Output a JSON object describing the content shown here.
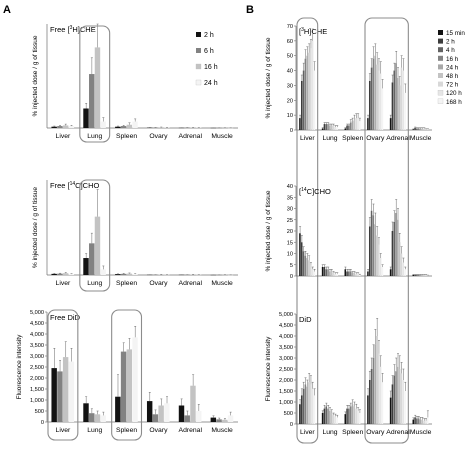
{
  "colors": {
    "series_grays": [
      "#121212",
      "#3c3c3c",
      "#626262",
      "#828282",
      "#a8a8a8",
      "#c3c3c3",
      "#d8d8d8",
      "#e6e6e6",
      "#f4f4f4"
    ],
    "highlight_box": "#8c8c8c",
    "axis": "#707070"
  },
  "panels": [
    {
      "letter": "A",
      "letter_pos": [
        3,
        13
      ]
    },
    {
      "letter": "B",
      "letter_pos": [
        246,
        13
      ]
    }
  ],
  "chart_data": [
    {
      "id": "A1",
      "type": "bar",
      "title": "Free [3H]CHE",
      "title_parts": [
        "Free [",
        "3",
        "H]CHE"
      ],
      "ylabel": "% injected dose / g of tissue",
      "categories": [
        "Liver",
        "Lung",
        "Spleen",
        "Ovary",
        "Adrenal",
        "Muscle"
      ],
      "ylim": [
        0,
        160
      ],
      "yticks": [],
      "show_xlabels": true,
      "series": [
        {
          "name": "2 h",
          "values": [
            2,
            30,
            2,
            0.5,
            0.3,
            0.2
          ],
          "errors": [
            1,
            8,
            1,
            0.3,
            0.2,
            0.1
          ]
        },
        {
          "name": "6 h",
          "values": [
            3,
            83,
            3,
            0.5,
            0.5,
            0.2
          ],
          "errors": [
            1,
            25,
            1,
            0.3,
            0.2,
            0.1
          ]
        },
        {
          "name": "16 h",
          "values": [
            4,
            124,
            5,
            1,
            0.6,
            0.3
          ],
          "errors": [
            2,
            55,
            3,
            0.5,
            0.3,
            0.1
          ]
        },
        {
          "name": "24 h",
          "values": [
            3,
            10,
            10,
            0.5,
            0.5,
            0.2
          ],
          "errors": [
            1,
            6,
            4,
            0.3,
            0.2,
            0.1
          ]
        }
      ],
      "highlight": [
        1
      ],
      "legend": {
        "entries": [
          "2 h",
          "6 h",
          "16 h",
          "24 h"
        ]
      }
    },
    {
      "id": "A2",
      "type": "bar",
      "title": "Free [14C]CHO",
      "title_parts": [
        "Free [",
        "14",
        "C]CHO"
      ],
      "ylabel": "% injected dose / g of tissue",
      "categories": [
        "Liver",
        "Lung",
        "Spleen",
        "Ovary",
        "Adrenal",
        "Muscle"
      ],
      "ylim": [
        0,
        420
      ],
      "yticks": [],
      "show_xlabels": true,
      "series": [
        {
          "name": "2 h",
          "values": [
            5,
            75,
            4,
            1,
            1,
            0.5
          ],
          "errors": [
            2,
            20,
            1,
            0.5,
            0.5,
            0.2
          ]
        },
        {
          "name": "6 h",
          "values": [
            6,
            140,
            5,
            1,
            1,
            0.5
          ],
          "errors": [
            2,
            45,
            2,
            0.5,
            0.5,
            0.2
          ]
        },
        {
          "name": "16 h",
          "values": [
            8,
            258,
            6,
            2,
            2,
            1
          ],
          "errors": [
            3,
            120,
            3,
            1,
            1,
            0.5
          ]
        },
        {
          "name": "24 h",
          "values": [
            4,
            25,
            4,
            1,
            1,
            0.5
          ],
          "errors": [
            2,
            15,
            2,
            0.5,
            0.5,
            0.2
          ]
        }
      ],
      "highlight": [
        1
      ]
    },
    {
      "id": "A3",
      "type": "bar",
      "title": "Free DiD",
      "title_parts": [
        "Free DiD",
        "",
        ""
      ],
      "ylabel": "Fluorescence intensity",
      "categories": [
        "Liver",
        "Lung",
        "Spleen",
        "Ovary",
        "Adrenal",
        "Muscle"
      ],
      "ylim": [
        0,
        5000
      ],
      "yticks": [
        "0",
        "500",
        "1,000",
        "1,500",
        "2,000",
        "2,500",
        "3,000",
        "3,500",
        "4,000",
        "4,500",
        "5,000"
      ],
      "show_xlabels": true,
      "series": [
        {
          "name": "2 h",
          "values": [
            2450,
            850,
            1150,
            950,
            750,
            200
          ],
          "errors": [
            900,
            300,
            1000,
            400,
            300,
            80
          ]
        },
        {
          "name": "6 h",
          "values": [
            2300,
            400,
            3200,
            350,
            300,
            120
          ],
          "errors": [
            500,
            200,
            400,
            200,
            200,
            60
          ]
        },
        {
          "name": "16 h",
          "values": [
            2950,
            350,
            3300,
            750,
            1650,
            100
          ],
          "errors": [
            700,
            150,
            500,
            300,
            500,
            60
          ]
        },
        {
          "name": "24 h",
          "values": [
            2750,
            300,
            3850,
            850,
            500,
            300
          ],
          "errors": [
            600,
            150,
            500,
            300,
            300,
            150
          ]
        }
      ],
      "highlight": [
        0,
        2
      ]
    },
    {
      "id": "B1",
      "type": "bar",
      "title": "[3H]CHE",
      "title_parts": [
        "[",
        "3",
        "H]CHE"
      ],
      "ylabel": "% injected dose / g of tissue",
      "categories": [
        "Liver",
        "Lung",
        "Spleen",
        "Ovary",
        "Adrenal",
        "Muscle"
      ],
      "ylim": [
        0,
        70
      ],
      "yticks": [
        "0",
        "10",
        "20",
        "30",
        "40",
        "50",
        "60",
        "70"
      ],
      "show_xlabels": true,
      "series": [
        {
          "name": "15 min",
          "values": [
            8,
            1,
            1,
            8,
            8,
            0.5
          ],
          "errors": [
            2,
            0.5,
            0.5,
            2,
            2,
            0.2
          ]
        },
        {
          "name": "2 h",
          "values": [
            33,
            4,
            3,
            33,
            32,
            1.5
          ],
          "errors": [
            4,
            1,
            1,
            5,
            5,
            0.5
          ]
        },
        {
          "name": "4 h",
          "values": [
            40,
            4,
            3,
            42,
            40,
            1
          ],
          "errors": [
            5,
            1,
            1,
            6,
            5,
            0.5
          ]
        },
        {
          "name": "16 h",
          "values": [
            48,
            4,
            5,
            48,
            45,
            1
          ],
          "errors": [
            6,
            1,
            2,
            8,
            8,
            0.5
          ]
        },
        {
          "name": "24 h",
          "values": [
            50,
            3,
            6,
            50,
            35,
            1
          ],
          "errors": [
            6,
            1,
            2,
            8,
            7,
            0.5
          ]
        },
        {
          "name": "48 h",
          "values": [
            52,
            3,
            7,
            44,
            30,
            1
          ],
          "errors": [
            6,
            1,
            3,
            8,
            6,
            0.5
          ]
        },
        {
          "name": "72 h",
          "values": [
            55,
            3,
            8,
            40,
            42,
            1
          ],
          "errors": [
            6,
            1,
            3,
            8,
            8,
            0.5
          ]
        },
        {
          "name": "120 h",
          "values": [
            60,
            2,
            8,
            38,
            40,
            0.5
          ],
          "errors": [
            8,
            1,
            3,
            8,
            8,
            0.3
          ]
        },
        {
          "name": "168 h",
          "values": [
            40,
            2,
            6,
            28,
            25,
            0.5
          ],
          "errors": [
            6,
            1,
            2,
            6,
            6,
            0.3
          ]
        }
      ],
      "highlight": [
        0,
        [
          3,
          4
        ]
      ],
      "legend": {
        "entries": [
          "15 min",
          "2 h",
          "4 h",
          "16 h",
          "24 h",
          "48 h",
          "72 h",
          "120 h",
          "168 h"
        ]
      }
    },
    {
      "id": "B2",
      "type": "bar",
      "title": "[14C]CHO",
      "title_parts": [
        "[",
        "14",
        "C]CHO"
      ],
      "ylabel": "% injected dose / g of tissue",
      "categories": [
        "Liver",
        "Lung",
        "Spleen",
        "Ovary",
        "Adrenal",
        "Muscle"
      ],
      "ylim": [
        0,
        40
      ],
      "yticks": [
        "0",
        "5",
        "10",
        "15",
        "20",
        "25",
        "30",
        "35",
        "40"
      ],
      "show_xlabels": false,
      "series": [
        {
          "name": "15 min",
          "values": [
            19,
            4,
            3,
            2,
            3,
            0.5
          ],
          "errors": [
            3,
            1,
            1,
            1,
            1,
            0.2
          ]
        },
        {
          "name": "2 h",
          "values": [
            15,
            4,
            2,
            22,
            20,
            0.5
          ],
          "errors": [
            3,
            1,
            1,
            4,
            4,
            0.2
          ]
        },
        {
          "name": "4 h",
          "values": [
            11,
            3,
            2,
            29,
            24,
            0.5
          ],
          "errors": [
            2,
            1,
            1,
            5,
            5,
            0.2
          ]
        },
        {
          "name": "16 h",
          "values": [
            9,
            3,
            2,
            27,
            28,
            0.5
          ],
          "errors": [
            2,
            1,
            1,
            5,
            6,
            0.2
          ]
        },
        {
          "name": "24 h",
          "values": [
            8,
            2,
            1.5,
            23,
            25,
            0.5
          ],
          "errors": [
            2,
            1,
            0.5,
            5,
            5,
            0.2
          ]
        },
        {
          "name": "48 h",
          "values": [
            7,
            2,
            1.5,
            18,
            15,
            0.5
          ],
          "errors": [
            2,
            1,
            0.5,
            4,
            4,
            0.2
          ]
        },
        {
          "name": "72 h",
          "values": [
            5,
            1.5,
            1,
            14,
            10,
            0.5
          ],
          "errors": [
            1,
            0.5,
            0.5,
            3,
            3,
            0.2
          ]
        },
        {
          "name": "120 h",
          "values": [
            3,
            1,
            1,
            8,
            6,
            0.5
          ],
          "errors": [
            1,
            0.5,
            0.5,
            2,
            2,
            0.2
          ]
        },
        {
          "name": "168 h",
          "values": [
            2,
            1,
            0.5,
            4,
            3,
            0.3
          ],
          "errors": [
            1,
            0.5,
            0.3,
            1,
            1,
            0.1
          ]
        }
      ],
      "highlight": [
        0,
        [
          3,
          4
        ]
      ]
    },
    {
      "id": "B3",
      "type": "bar",
      "title": "DiD",
      "title_parts": [
        "DiD",
        "",
        ""
      ],
      "ylabel": "Fluorescence intensity",
      "categories": [
        "Liver",
        "Lung",
        "Spleen",
        "Ovary",
        "Adrenal",
        "Muscle"
      ],
      "ylim": [
        0,
        5000
      ],
      "yticks": [
        "0",
        "500",
        "1,000",
        "1,500",
        "2,000",
        "2,500",
        "3,000",
        "3,500",
        "4,000",
        "4,500",
        "5,000"
      ],
      "show_xlabels": true,
      "series": [
        {
          "name": "15 min",
          "values": [
            900,
            500,
            450,
            1300,
            1200,
            200
          ],
          "errors": [
            200,
            100,
            100,
            300,
            300,
            80
          ]
        },
        {
          "name": "2 h",
          "values": [
            1300,
            700,
            700,
            2000,
            1800,
            300
          ],
          "errors": [
            300,
            150,
            150,
            400,
            400,
            100
          ]
        },
        {
          "name": "4 h",
          "values": [
            1600,
            800,
            700,
            2500,
            2200,
            250
          ],
          "errors": [
            300,
            150,
            150,
            500,
            500,
            100
          ]
        },
        {
          "name": "16 h",
          "values": [
            1800,
            700,
            800,
            3000,
            2400,
            250
          ],
          "errors": [
            300,
            150,
            150,
            600,
            600,
            100
          ]
        },
        {
          "name": "24 h",
          "values": [
            1700,
            600,
            900,
            3600,
            2600,
            200
          ],
          "errors": [
            300,
            150,
            200,
            700,
            600,
            100
          ]
        },
        {
          "name": "48 h",
          "values": [
            1900,
            500,
            800,
            4000,
            2500,
            200
          ],
          "errors": [
            400,
            150,
            200,
            800,
            600,
            100
          ]
        },
        {
          "name": "72 h",
          "values": [
            1800,
            400,
            700,
            3200,
            2300,
            150
          ],
          "errors": [
            400,
            100,
            200,
            600,
            500,
            100
          ]
        },
        {
          "name": "120 h",
          "values": [
            1600,
            350,
            600,
            2600,
            2000,
            150
          ],
          "errors": [
            300,
            100,
            150,
            500,
            500,
            100
          ]
        },
        {
          "name": "168 h",
          "values": [
            1300,
            300,
            500,
            1900,
            1500,
            300
          ],
          "errors": [
            300,
            100,
            150,
            400,
            400,
            300
          ]
        }
      ],
      "highlight": [
        0,
        [
          3,
          4
        ]
      ]
    }
  ]
}
